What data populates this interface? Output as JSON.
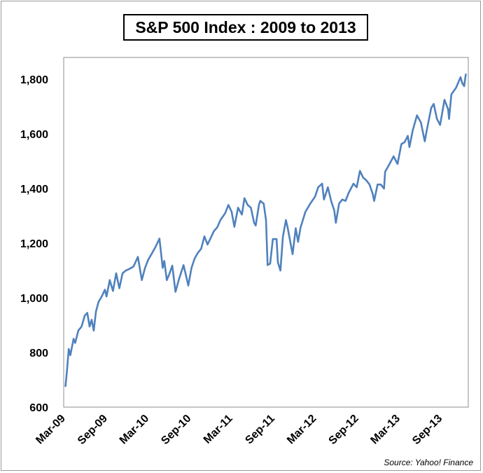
{
  "chart_data": {
    "type": "line",
    "title": "S&P 500 Index : 2009 to 2013",
    "xlabel": "",
    "ylabel": "",
    "x_start": "2009-03",
    "x_end": "2013-12",
    "x_tick_labels": [
      "Mar-09",
      "Sep-09",
      "Mar-10",
      "Sep-10",
      "Mar-11",
      "Sep-11",
      "Mar-12",
      "Sep-12",
      "Mar-13",
      "Sep-13"
    ],
    "x_tick_dates": [
      "2009-03",
      "2009-09",
      "2010-03",
      "2010-09",
      "2011-03",
      "2011-09",
      "2012-03",
      "2012-09",
      "2013-03",
      "2013-09"
    ],
    "ylim": [
      600,
      1880
    ],
    "y_ticks": [
      600,
      800,
      1000,
      1200,
      1400,
      1600,
      1800
    ],
    "y_tick_labels": [
      "600",
      "800",
      "1,000",
      "1,200",
      "1,400",
      "1,600",
      "1,800"
    ],
    "grid": false,
    "series": [
      {
        "color": "#4F81BD",
        "points": [
          [
            "2009-03-09",
            677
          ],
          [
            "2009-03-16",
            740
          ],
          [
            "2009-03-23",
            813
          ],
          [
            "2009-03-30",
            790
          ],
          [
            "2009-04-13",
            850
          ],
          [
            "2009-04-20",
            835
          ],
          [
            "2009-05-04",
            880
          ],
          [
            "2009-05-18",
            895
          ],
          [
            "2009-06-01",
            935
          ],
          [
            "2009-06-12",
            945
          ],
          [
            "2009-06-22",
            895
          ],
          [
            "2009-07-01",
            920
          ],
          [
            "2009-07-10",
            880
          ],
          [
            "2009-07-20",
            950
          ],
          [
            "2009-07-31",
            985
          ],
          [
            "2009-08-14",
            1005
          ],
          [
            "2009-08-28",
            1030
          ],
          [
            "2009-09-04",
            1005
          ],
          [
            "2009-09-18",
            1065
          ],
          [
            "2009-10-02",
            1025
          ],
          [
            "2009-10-16",
            1090
          ],
          [
            "2009-10-30",
            1035
          ],
          [
            "2009-11-13",
            1090
          ],
          [
            "2009-11-27",
            1100
          ],
          [
            "2009-12-11",
            1105
          ],
          [
            "2009-12-31",
            1115
          ],
          [
            "2010-01-19",
            1150
          ],
          [
            "2010-02-05",
            1065
          ],
          [
            "2010-02-19",
            1110
          ],
          [
            "2010-03-05",
            1140
          ],
          [
            "2010-03-19",
            1160
          ],
          [
            "2010-04-05",
            1185
          ],
          [
            "2010-04-23",
            1217
          ],
          [
            "2010-05-07",
            1110
          ],
          [
            "2010-05-14",
            1135
          ],
          [
            "2010-05-25",
            1065
          ],
          [
            "2010-06-04",
            1085
          ],
          [
            "2010-06-18",
            1118
          ],
          [
            "2010-07-02",
            1022
          ],
          [
            "2010-07-16",
            1065
          ],
          [
            "2010-08-06",
            1120
          ],
          [
            "2010-08-20",
            1070
          ],
          [
            "2010-08-27",
            1045
          ],
          [
            "2010-09-10",
            1110
          ],
          [
            "2010-09-24",
            1145
          ],
          [
            "2010-10-08",
            1165
          ],
          [
            "2010-10-22",
            1180
          ],
          [
            "2010-11-05",
            1225
          ],
          [
            "2010-11-19",
            1195
          ],
          [
            "2010-12-03",
            1220
          ],
          [
            "2010-12-17",
            1245
          ],
          [
            "2010-12-31",
            1258
          ],
          [
            "2011-01-14",
            1285
          ],
          [
            "2011-02-04",
            1310
          ],
          [
            "2011-02-18",
            1340
          ],
          [
            "2011-03-04",
            1315
          ],
          [
            "2011-03-16",
            1260
          ],
          [
            "2011-04-01",
            1330
          ],
          [
            "2011-04-18",
            1305
          ],
          [
            "2011-04-29",
            1365
          ],
          [
            "2011-05-13",
            1340
          ],
          [
            "2011-05-27",
            1330
          ],
          [
            "2011-06-10",
            1275
          ],
          [
            "2011-06-17",
            1265
          ],
          [
            "2011-07-01",
            1340
          ],
          [
            "2011-07-07",
            1355
          ],
          [
            "2011-07-22",
            1345
          ],
          [
            "2011-08-01",
            1285
          ],
          [
            "2011-08-08",
            1120
          ],
          [
            "2011-08-19",
            1125
          ],
          [
            "2011-08-31",
            1215
          ],
          [
            "2011-09-16",
            1215
          ],
          [
            "2011-09-22",
            1130
          ],
          [
            "2011-10-03",
            1100
          ],
          [
            "2011-10-14",
            1225
          ],
          [
            "2011-10-27",
            1285
          ],
          [
            "2011-11-04",
            1255
          ],
          [
            "2011-11-25",
            1160
          ],
          [
            "2011-12-09",
            1255
          ],
          [
            "2011-12-19",
            1205
          ],
          [
            "2011-12-30",
            1258
          ],
          [
            "2012-01-20",
            1315
          ],
          [
            "2012-02-10",
            1345
          ],
          [
            "2012-03-02",
            1370
          ],
          [
            "2012-03-16",
            1405
          ],
          [
            "2012-04-02",
            1418
          ],
          [
            "2012-04-10",
            1360
          ],
          [
            "2012-04-27",
            1405
          ],
          [
            "2012-05-11",
            1355
          ],
          [
            "2012-05-25",
            1320
          ],
          [
            "2012-06-01",
            1275
          ],
          [
            "2012-06-15",
            1345
          ],
          [
            "2012-06-29",
            1360
          ],
          [
            "2012-07-13",
            1355
          ],
          [
            "2012-07-27",
            1385
          ],
          [
            "2012-08-17",
            1418
          ],
          [
            "2012-08-31",
            1405
          ],
          [
            "2012-09-14",
            1465
          ],
          [
            "2012-09-28",
            1440
          ],
          [
            "2012-10-12",
            1430
          ],
          [
            "2012-10-26",
            1415
          ],
          [
            "2012-11-09",
            1380
          ],
          [
            "2012-11-15",
            1355
          ],
          [
            "2012-11-30",
            1415
          ],
          [
            "2012-12-14",
            1415
          ],
          [
            "2012-12-28",
            1400
          ],
          [
            "2013-01-02",
            1462
          ],
          [
            "2013-01-18",
            1485
          ],
          [
            "2013-02-08",
            1518
          ],
          [
            "2013-02-25",
            1490
          ],
          [
            "2013-03-14",
            1563
          ],
          [
            "2013-03-28",
            1570
          ],
          [
            "2013-04-11",
            1593
          ],
          [
            "2013-04-18",
            1552
          ],
          [
            "2013-05-03",
            1615
          ],
          [
            "2013-05-21",
            1668
          ],
          [
            "2013-06-07",
            1642
          ],
          [
            "2013-06-24",
            1573
          ],
          [
            "2013-07-03",
            1615
          ],
          [
            "2013-07-22",
            1695
          ],
          [
            "2013-08-02",
            1710
          ],
          [
            "2013-08-16",
            1655
          ],
          [
            "2013-08-30",
            1633
          ],
          [
            "2013-09-18",
            1725
          ],
          [
            "2013-10-04",
            1690
          ],
          [
            "2013-10-08",
            1655
          ],
          [
            "2013-10-18",
            1745
          ],
          [
            "2013-11-08",
            1770
          ],
          [
            "2013-11-27",
            1808
          ],
          [
            "2013-12-05",
            1785
          ],
          [
            "2013-12-13",
            1775
          ],
          [
            "2013-12-20",
            1818
          ]
        ]
      }
    ],
    "source_note": "Source: Yahoo! Finance"
  }
}
